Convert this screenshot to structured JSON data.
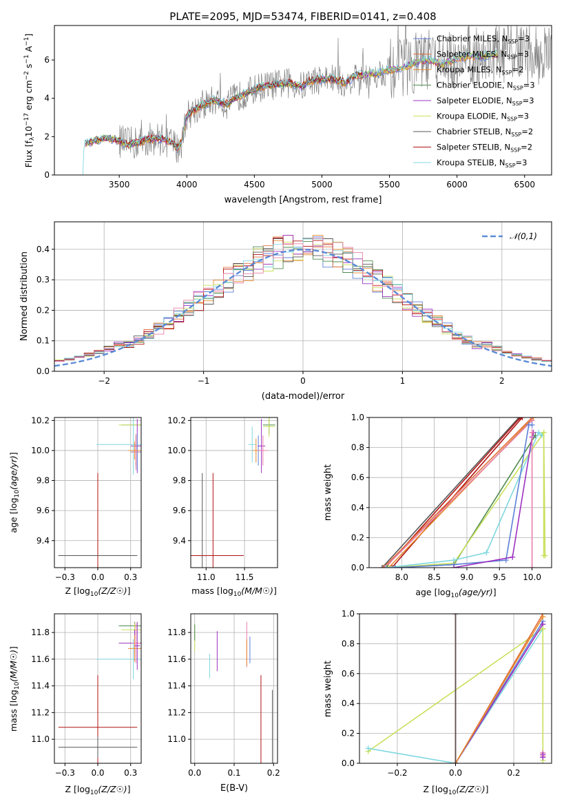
{
  "title": "PLATE=2095, MJD=53474, FIBERID=0141, z=0.408",
  "colors": {
    "Chabrier MILES": "#5b7fd6",
    "Salpeter MILES": "#e0703a",
    "Kroupa MILES": "#e68a2e",
    "Chabrier ELODIE": "#4e8a4e",
    "Salpeter ELODIE": "#9b30c0",
    "Kroupa ELODIE": "#c8e05a",
    "Chabrier STELIB": "#555555",
    "Salpeter STELIB": "#b01010",
    "Kroupa STELIB": "#7fd7e0",
    "pink": "#e87fa8",
    "lime": "#c8e05a",
    "data": "#808080",
    "normal": "#5b8bd6"
  },
  "chart_data": [
    {
      "id": "spectrum",
      "type": "line",
      "xlabel": "wavelength [Angstrom, rest frame]",
      "ylabel": "Flux [f_λ 10^-17 erg cm^-2 s^-1 A^-1]",
      "xlim": [
        3020,
        6700
      ],
      "ylim": [
        0,
        7.8
      ],
      "xticks": [
        3500,
        4000,
        4500,
        5000,
        5500,
        6000,
        6500
      ],
      "yticks": [
        0,
        2,
        4,
        6
      ],
      "grid": false,
      "legend_position": "top-right",
      "series": [
        {
          "name": "Chabrier MILES",
          "N": "3"
        },
        {
          "name": "Salpeter MILES",
          "N": "3"
        },
        {
          "name": "Kroupa MILES",
          "N": "2"
        },
        {
          "name": "Chabrier ELODIE",
          "N": "3"
        },
        {
          "name": "Salpeter ELODIE",
          "N": "3"
        },
        {
          "name": "Kroupa ELODIE",
          "N": "3"
        },
        {
          "name": "Chabrier STELIB",
          "N": "2"
        },
        {
          "name": "Salpeter STELIB",
          "N": "2"
        },
        {
          "name": "Kroupa STELIB",
          "N": "3"
        }
      ],
      "model_continuum": [
        [
          3230,
          0
        ],
        [
          3240,
          1.6
        ],
        [
          3300,
          1.75
        ],
        [
          3400,
          1.95
        ],
        [
          3500,
          1.8
        ],
        [
          3560,
          1.6
        ],
        [
          3650,
          1.7
        ],
        [
          3700,
          1.85
        ],
        [
          3800,
          1.9
        ],
        [
          3880,
          1.7
        ],
        [
          3930,
          1.4
        ],
        [
          3960,
          1.7
        ],
        [
          4000,
          3.1
        ],
        [
          4100,
          3.6
        ],
        [
          4200,
          3.9
        ],
        [
          4300,
          3.7
        ],
        [
          4350,
          4.0
        ],
        [
          4450,
          4.3
        ],
        [
          4550,
          4.6
        ],
        [
          4650,
          4.7
        ],
        [
          4750,
          4.8
        ],
        [
          4860,
          4.6
        ],
        [
          4900,
          4.9
        ],
        [
          5000,
          5.0
        ],
        [
          5100,
          5.0
        ],
        [
          5170,
          4.8
        ],
        [
          5250,
          5.2
        ],
        [
          5400,
          5.3
        ],
        [
          5500,
          5.5
        ],
        [
          5600,
          5.6
        ],
        [
          5700,
          5.9
        ],
        [
          5800,
          6.0
        ],
        [
          5890,
          5.8
        ],
        [
          6000,
          6.1
        ],
        [
          6100,
          6.2
        ],
        [
          6200,
          6.2
        ],
        [
          6300,
          6.3
        ]
      ]
    },
    {
      "id": "residuals",
      "type": "histogram",
      "xlabel": "(data-model)/error",
      "ylabel": "Normed distribution",
      "xlim": [
        -2.5,
        2.5
      ],
      "ylim": [
        0,
        0.49
      ],
      "xticks": [
        -2,
        -1,
        0,
        1,
        2
      ],
      "yticks": [
        0.0,
        0.1,
        0.2,
        0.3,
        0.4
      ],
      "grid": true,
      "legend": "𝒩(0,1)",
      "legend_position": "top-right"
    },
    {
      "id": "age-vs-Z",
      "type": "errorbar",
      "xlabel": "Z [log10(Z/Z☉)]",
      "ylabel": "age [log10(age/yr)]",
      "xlim": [
        -0.33,
        0.33
      ],
      "ylim": [
        9.22,
        10.22
      ],
      "xticks": [
        -0.25,
        0.0,
        0.25
      ],
      "yticks": [
        9.4,
        9.6,
        9.8,
        10.0,
        10.2
      ],
      "grid": true
    },
    {
      "id": "age-vs-mass",
      "type": "errorbar",
      "xlabel": "mass [log10(M/M☉)]",
      "ylabel": "",
      "xlim": [
        10.8,
        11.93
      ],
      "ylim": [
        9.22,
        10.22
      ],
      "xticks": [
        11.0,
        11.5
      ],
      "yticks": [
        9.4,
        9.6,
        9.8,
        10.0,
        10.2
      ],
      "grid": true
    },
    {
      "id": "mass-weight-vs-age",
      "type": "line",
      "xlabel": "age [log10(age/yr)]",
      "ylabel": "mass weight",
      "xlim": [
        7.5,
        10.3
      ],
      "ylim": [
        0.0,
        1.0
      ],
      "xticks": [
        8.0,
        8.5,
        9.0,
        9.5,
        10.0
      ],
      "yticks": [
        0.0,
        0.2,
        0.4,
        0.6,
        0.8,
        1.0
      ],
      "grid": true
    },
    {
      "id": "mass-vs-Z",
      "type": "errorbar",
      "xlabel": "Z [log10(Z/Z☉)]",
      "ylabel": "mass [log10(M/M☉)]",
      "xlim": [
        -0.33,
        0.33
      ],
      "ylim": [
        10.82,
        11.94
      ],
      "xticks": [
        -0.25,
        0.0,
        0.25
      ],
      "yticks": [
        11.0,
        11.2,
        11.4,
        11.6,
        11.8
      ],
      "grid": true
    },
    {
      "id": "mass-vs-EBV",
      "type": "errorbar",
      "xlabel": "E(B-V)",
      "ylabel": "",
      "xlim": [
        -0.01,
        0.21
      ],
      "ylim": [
        10.82,
        11.94
      ],
      "xticks": [
        0.0,
        0.1,
        0.2
      ],
      "yticks": [
        11.0,
        11.2,
        11.4,
        11.6,
        11.8
      ],
      "grid": true
    },
    {
      "id": "mass-weight-vs-Z",
      "type": "line",
      "xlabel": "Z [log10(Z/Z☉)]",
      "ylabel": "mass weight",
      "xlim": [
        -0.33,
        0.33
      ],
      "ylim": [
        0.0,
        1.0
      ],
      "xticks": [
        -0.2,
        0.0,
        0.2
      ],
      "yticks": [
        0.0,
        0.2,
        0.4,
        0.6,
        0.8,
        1.0
      ],
      "grid": true
    }
  ]
}
